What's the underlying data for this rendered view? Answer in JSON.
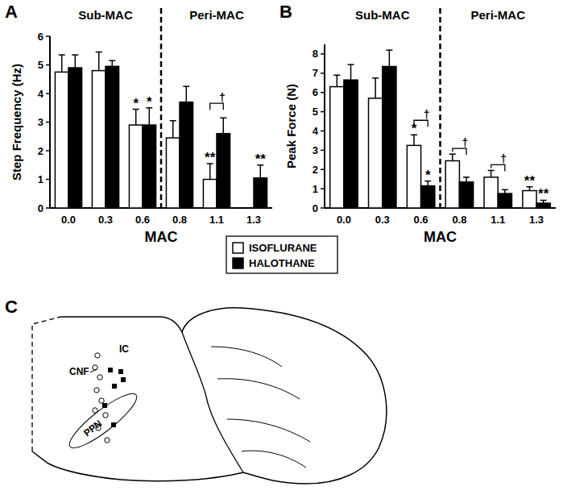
{
  "chart_data": [
    {
      "type": "bar",
      "panel": "A",
      "y_label": "Step Frequency (Hz)",
      "x_label": "MAC",
      "categories": [
        "0.0",
        "0.3",
        "0.6",
        "0.8",
        "1.1",
        "1.3"
      ],
      "series": [
        {
          "name": "ISOFLURANE",
          "color": "#ffffff",
          "values": [
            4.75,
            4.8,
            2.9,
            2.45,
            1.0,
            null
          ],
          "errors": [
            0.6,
            0.65,
            0.55,
            0.6,
            0.55,
            null
          ]
        },
        {
          "name": "HALOTHANE",
          "color": "#000000",
          "values": [
            4.9,
            4.95,
            2.9,
            3.7,
            2.6,
            1.05
          ],
          "errors": [
            0.45,
            0.2,
            0.6,
            0.55,
            0.55,
            0.45
          ]
        }
      ],
      "ylim": [
        0,
        6
      ],
      "yticks": [
        0,
        1,
        2,
        3,
        4,
        5,
        6
      ],
      "sections": [
        {
          "label": "Sub-MAC",
          "from": 0,
          "to": 2
        },
        {
          "label": "Peri-MAC",
          "from": 3,
          "to": 5
        }
      ],
      "annotations": [
        {
          "text": "*",
          "category": 2,
          "series": 0
        },
        {
          "text": "*",
          "category": 2,
          "series": 1
        },
        {
          "text": "**",
          "category": 4,
          "series": 0
        },
        {
          "text": "†",
          "category": 4
        },
        {
          "text": "**",
          "category": 5,
          "series": 1
        }
      ],
      "legend": "bottom"
    },
    {
      "type": "bar",
      "panel": "B",
      "y_label": "Peak Force (N)",
      "x_label": "MAC",
      "categories": [
        "0.0",
        "0.3",
        "0.6",
        "0.8",
        "1.1",
        "1.3"
      ],
      "series": [
        {
          "name": "ISOFLURANE",
          "color": "#ffffff",
          "values": [
            6.3,
            5.7,
            3.25,
            2.45,
            1.6,
            0.9
          ],
          "errors": [
            0.6,
            1.05,
            0.55,
            0.35,
            0.35,
            0.2
          ]
        },
        {
          "name": "HALOTHANE",
          "color": "#000000",
          "values": [
            6.65,
            7.35,
            1.15,
            1.35,
            0.75,
            0.25
          ],
          "errors": [
            0.8,
            0.85,
            0.25,
            0.25,
            0.2,
            0.15
          ]
        }
      ],
      "ylim": [
        0,
        8.5
      ],
      "yticks": [
        0,
        1,
        2,
        3,
        4,
        5,
        6,
        7,
        8
      ],
      "sections": [
        {
          "label": "Sub-MAC",
          "from": 0,
          "to": 2
        },
        {
          "label": "Peri-MAC",
          "from": 3,
          "to": 5
        }
      ],
      "annotations": [
        {
          "text": "*",
          "category": 2,
          "series": 0
        },
        {
          "text": "*",
          "category": 2,
          "series": 1
        },
        {
          "text": "†",
          "category": 2
        },
        {
          "text": "†",
          "category": 3
        },
        {
          "text": "†",
          "category": 4
        },
        {
          "text": "**",
          "category": 5,
          "series": 0
        },
        {
          "text": "**",
          "category": 5,
          "series": 1
        }
      ]
    }
  ],
  "panel_c": {
    "panel": "C",
    "labels": [
      "IC",
      "CNF",
      "PPN"
    ]
  }
}
